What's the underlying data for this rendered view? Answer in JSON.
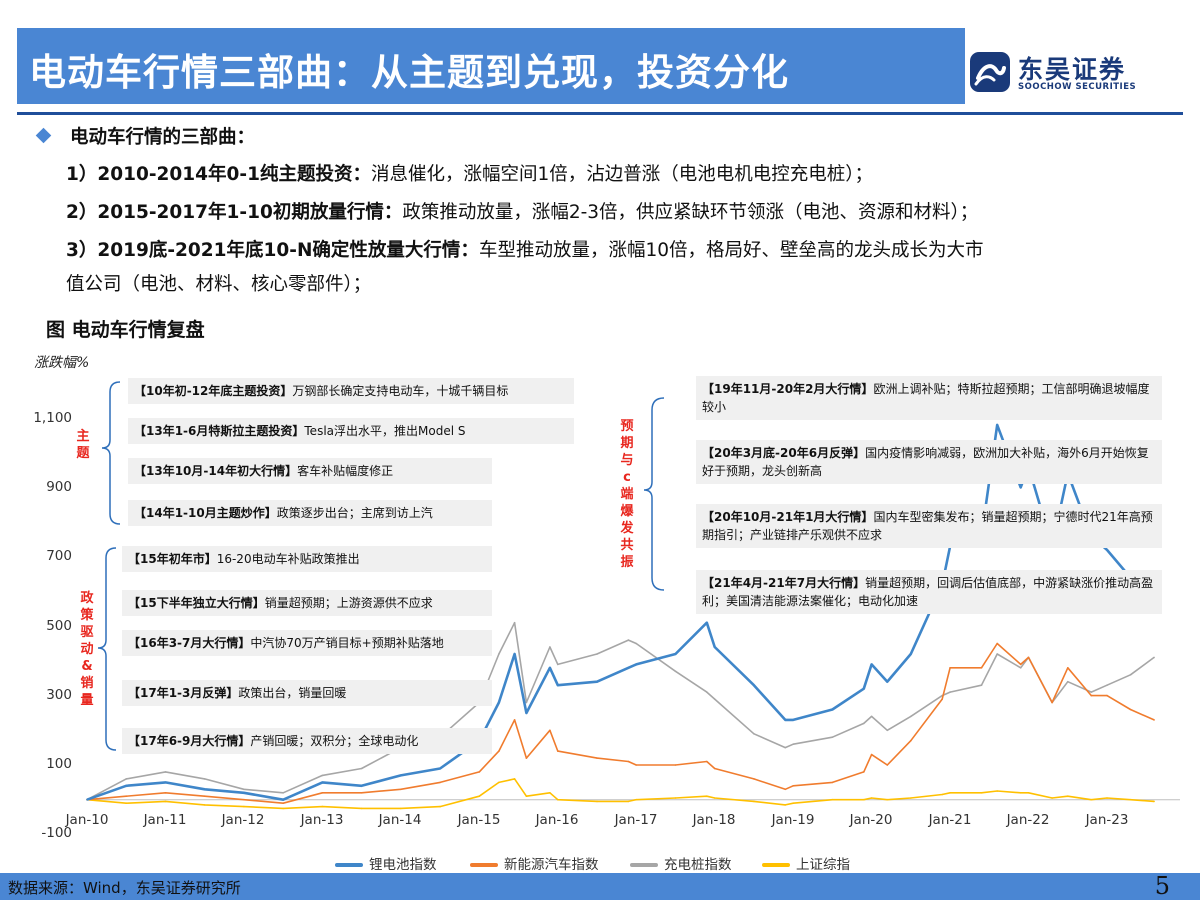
{
  "header": {
    "title": "电动车行情三部曲：从主题到兑现，投资分化",
    "logo_cn": "东吴证券",
    "logo_en": "SOOCHOW SECURITIES"
  },
  "intro": {
    "heading": "电动车行情的三部曲：",
    "phases": [
      {
        "label": "1）2010-2014年0-1纯主题投资：",
        "text": "消息催化，涨幅空间1倍，沾边普涨（电池电机电控充电桩）；"
      },
      {
        "label": "2）2015-2017年1-10初期放量行情：",
        "text": "政策推动放量，涨幅2-3倍，供应紧缺环节领涨（电池、资源和材料）；"
      },
      {
        "label": "3）2019底-2021年底10-N确定性放量大行情：",
        "text": "车型推动放量，涨幅10倍，格局好、壁垒高的龙头成长为大市",
        "text2": "值公司（电池、材料、核心零部件）；"
      }
    ]
  },
  "figure": {
    "title": "图 电动车行情复盘"
  },
  "annotations": {
    "left_group": [
      {
        "bold": "【10年初-12年底主题投资】",
        "text": "万钢部长确定支持电动车，十城千辆目标"
      },
      {
        "bold": "【13年1-6月特斯拉主题投资】",
        "text": "Tesla浮出水平，推出Model S"
      },
      {
        "bold": "【13年10月-14年初大行情】",
        "text": "客车补贴幅度修正"
      },
      {
        "bold": "【14年1-10月主题炒作】",
        "text": "政策逐步出台；主席到访上汽"
      }
    ],
    "left_side_label": "主题",
    "mid_group": [
      {
        "bold": "【15年初年市】",
        "text": "16-20电动车补贴政策推出"
      },
      {
        "bold": "【15下半年独立大行情】",
        "text": "销量超预期；上游资源供不应求"
      },
      {
        "bold": "【16年3-7月大行情】",
        "text": "中汽协70万产销目标+预期补贴落地"
      },
      {
        "bold": "【17年1-3月反弹】",
        "text": "政策出台，销量回暖"
      },
      {
        "bold": "【17年6-9月大行情】",
        "text": "产销回暖；双积分；全球电动化"
      }
    ],
    "mid_side_label": "政策驱动&销量",
    "right_group": [
      {
        "bold": "【19年11月-20年2月大行情】",
        "text": "欧洲上调补贴；特斯拉超预期；工信部明确退坡幅度较小"
      },
      {
        "bold": "【20年3月底-20年6月反弹】",
        "text": "国内疫情影响减弱，欧洲加大补贴，海外6月开始恢复好于预期，龙头创新高"
      },
      {
        "bold": "【20年10月-21年1月大行情】",
        "text": "国内车型密集发布；销量超预期；宁德时代21年高预期指引；产业链排产乐观供不应求"
      },
      {
        "bold": "【21年4月-21年7月大行情】",
        "text": "销量超预期，回调后估值底部，中游紧缺涨价推动高盈利；美国清洁能源法案催化；电动化加速"
      }
    ],
    "right_side_label": "预期与c端爆发共振"
  },
  "chart_data": {
    "type": "line",
    "ylabel": "涨跌幅%",
    "ylim": [
      -100,
      1200
    ],
    "yticks": [
      "1,100",
      "900",
      "700",
      "500",
      "300",
      "100",
      "-100"
    ],
    "ytick_values": [
      1100,
      900,
      700,
      500,
      300,
      100,
      -100
    ],
    "xticks": [
      "Jan-10",
      "Jan-11",
      "Jan-12",
      "Jan-13",
      "Jan-14",
      "Jan-15",
      "Jan-16",
      "Jan-17",
      "Jan-18",
      "Jan-19",
      "Jan-20",
      "Jan-21",
      "Jan-22",
      "Jan-23"
    ],
    "x": [
      2010.0,
      2010.5,
      2011.0,
      2011.5,
      2012.0,
      2012.5,
      2013.0,
      2013.5,
      2014.0,
      2014.5,
      2015.0,
      2015.25,
      2015.45,
      2015.6,
      2015.9,
      2016.0,
      2016.5,
      2016.9,
      2017.0,
      2017.5,
      2017.9,
      2018.0,
      2018.5,
      2018.9,
      2019.0,
      2019.5,
      2019.9,
      2020.0,
      2020.2,
      2020.5,
      2020.9,
      2021.0,
      2021.4,
      2021.6,
      2021.9,
      2022.0,
      2022.3,
      2022.5,
      2022.8,
      2023.0,
      2023.3,
      2023.6
    ],
    "series": [
      {
        "name": "锂电池指数",
        "color": "#3f86c9",
        "values": [
          0,
          40,
          50,
          30,
          20,
          0,
          50,
          40,
          70,
          90,
          170,
          280,
          420,
          250,
          380,
          330,
          340,
          380,
          390,
          420,
          510,
          440,
          330,
          230,
          230,
          260,
          320,
          390,
          340,
          420,
          620,
          730,
          760,
          1080,
          900,
          960,
          730,
          940,
          760,
          720,
          640,
          600
        ]
      },
      {
        "name": "新能源汽车指数",
        "color": "#f07c2e",
        "values": [
          0,
          10,
          20,
          10,
          0,
          -10,
          20,
          20,
          30,
          50,
          80,
          140,
          230,
          120,
          200,
          140,
          120,
          110,
          100,
          100,
          110,
          90,
          60,
          30,
          40,
          50,
          80,
          130,
          100,
          170,
          290,
          380,
          380,
          450,
          390,
          410,
          280,
          380,
          300,
          300,
          260,
          230
        ]
      },
      {
        "name": "充电桩指数",
        "color": "#a6a6a6",
        "values": [
          0,
          60,
          80,
          60,
          30,
          20,
          70,
          90,
          150,
          180,
          280,
          420,
          510,
          280,
          440,
          390,
          420,
          460,
          450,
          370,
          310,
          290,
          190,
          150,
          160,
          180,
          220,
          240,
          200,
          240,
          300,
          310,
          330,
          420,
          380,
          410,
          280,
          340,
          310,
          330,
          360,
          410
        ]
      },
      {
        "name": "上证综指",
        "color": "#ffc000",
        "values": [
          0,
          -10,
          -5,
          -15,
          -20,
          -25,
          -20,
          -25,
          -25,
          -20,
          10,
          50,
          60,
          10,
          20,
          0,
          -5,
          -5,
          0,
          5,
          10,
          5,
          -5,
          -15,
          -10,
          0,
          0,
          5,
          0,
          5,
          15,
          20,
          20,
          25,
          20,
          20,
          5,
          10,
          0,
          5,
          0,
          -5
        ]
      }
    ]
  },
  "footer": {
    "source": "数据来源：Wind，东吴证券研究所",
    "page": "5"
  }
}
